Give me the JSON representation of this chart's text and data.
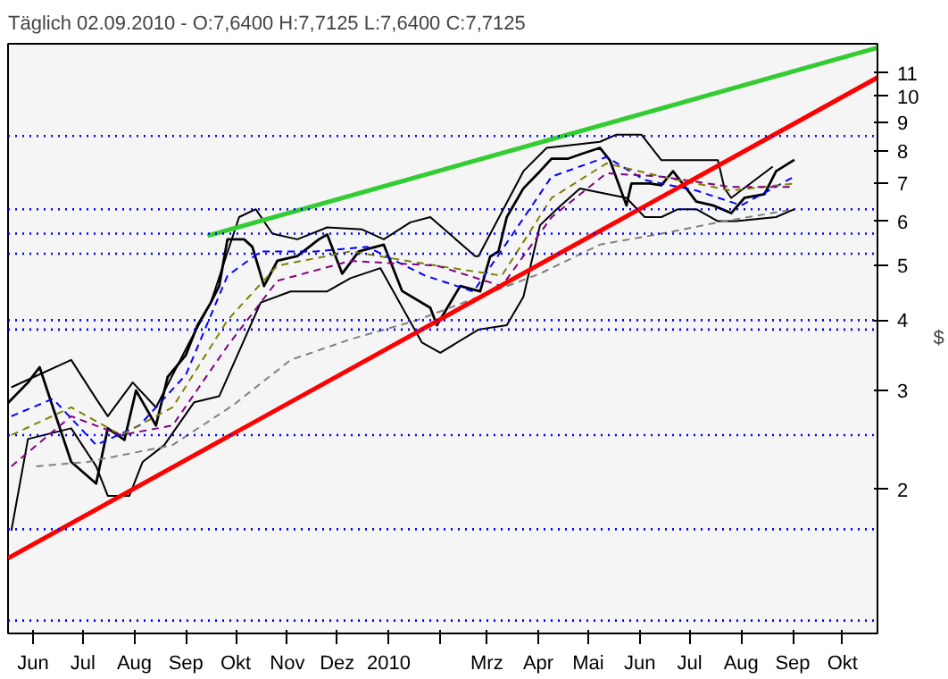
{
  "chart_data": {
    "type": "line",
    "title": "Täglich 02.09.2010 - O:7,6400 H:7,7125 L:7,6400 C:7,7125",
    "ylabel": "$",
    "log": "y",
    "grid": false,
    "xlim": [
      "2009-05-17",
      "2010-10-22"
    ],
    "ylim": [
      1.11,
      12.4
    ],
    "xticks": [
      {
        "value": "2009-06-01",
        "label": "Jun"
      },
      {
        "value": "2009-07-01",
        "label": "Jul"
      },
      {
        "value": "2009-08-01",
        "label": "Aug"
      },
      {
        "value": "2009-09-01",
        "label": "Sep"
      },
      {
        "value": "2009-10-01",
        "label": "Okt"
      },
      {
        "value": "2009-11-01",
        "label": "Nov"
      },
      {
        "value": "2009-12-01",
        "label": "Dez"
      },
      {
        "value": "2010-01-01",
        "label": "2010"
      },
      {
        "value": "2010-02-01",
        "label": null
      },
      {
        "value": "2010-03-01",
        "label": "Mrz"
      },
      {
        "value": "2010-04-01",
        "label": "Apr"
      },
      {
        "value": "2010-05-01",
        "label": "Mai"
      },
      {
        "value": "2010-06-01",
        "label": "Jun"
      },
      {
        "value": "2010-07-01",
        "label": "Jul"
      },
      {
        "value": "2010-08-01",
        "label": "Aug"
      },
      {
        "value": "2010-09-01",
        "label": "Sep"
      },
      {
        "value": "2010-10-01",
        "label": "Okt"
      }
    ],
    "yticks": [
      2,
      3,
      4,
      5,
      6,
      7,
      8,
      9,
      10,
      11
    ],
    "ref_lines": [
      {
        "axis": "y",
        "value": 8.5,
        "color": "#0000ff",
        "line_style": "dotted"
      },
      {
        "axis": "y",
        "value": 6.3,
        "color": "#0000ff",
        "line_style": "dotted"
      },
      {
        "axis": "y",
        "value": 5.7,
        "color": "#0000ff",
        "line_style": "dotted"
      },
      {
        "axis": "y",
        "value": 5.25,
        "color": "#0000ff",
        "line_style": "dotted"
      },
      {
        "axis": "y",
        "value": 4.0,
        "color": "#0000ff",
        "line_style": "dotted"
      },
      {
        "axis": "y",
        "value": 3.85,
        "color": "#0000ff",
        "line_style": "dotted"
      },
      {
        "axis": "y",
        "value": 2.5,
        "color": "#0000ff",
        "line_style": "dotted"
      },
      {
        "axis": "y",
        "value": 1.7,
        "color": "#0000ff",
        "line_style": "dotted"
      },
      {
        "axis": "y",
        "value": 1.17,
        "color": "#0000ff",
        "line_style": "dotted"
      }
    ],
    "series": [
      {
        "color": "#000000",
        "line_style": "solid",
        "x": [
          "2009-05-17",
          "2009-05-29",
          "2009-06-05",
          "2009-06-13",
          "2009-06-24",
          "2009-07-09",
          "2009-07-16",
          "2009-07-26",
          "2009-08-02",
          "2009-08-14",
          "2009-08-21",
          "2009-09-01",
          "2009-09-08",
          "2009-09-16",
          "2009-09-21",
          "2009-09-26",
          "2009-10-06",
          "2009-10-11",
          "2009-10-18",
          "2009-10-26",
          "2009-11-07",
          "2009-11-20",
          "2009-11-25",
          "2009-12-04",
          "2009-12-14",
          "2009-12-29",
          "2010-01-09",
          "2010-01-26",
          "2010-01-30",
          "2010-02-13",
          "2010-02-25",
          "2010-03-03",
          "2010-03-08",
          "2010-03-13",
          "2010-03-23",
          "2010-04-02",
          "2010-04-09",
          "2010-04-19",
          "2010-04-27",
          "2010-05-08",
          "2010-05-14",
          "2010-05-24",
          "2010-05-27",
          "2010-06-07",
          "2010-06-14",
          "2010-06-21",
          "2010-06-29",
          "2010-07-05",
          "2010-07-15",
          "2010-07-26",
          "2010-08-03",
          "2010-08-15",
          "2010-08-22",
          "2010-09-02"
        ],
        "values": [
          2.85,
          3.1,
          3.3,
          2.8,
          2.24,
          2.05,
          2.57,
          2.45,
          3.0,
          2.6,
          3.17,
          3.47,
          3.92,
          4.3,
          4.6,
          5.57,
          5.57,
          5.4,
          4.6,
          5.1,
          5.2,
          5.57,
          5.68,
          4.84,
          5.3,
          5.45,
          4.51,
          4.21,
          3.92,
          4.6,
          4.5,
          5.19,
          5.3,
          6.1,
          6.86,
          7.36,
          7.75,
          7.75,
          7.9,
          8.1,
          7.7,
          6.4,
          7.0,
          7.0,
          6.95,
          7.36,
          6.86,
          6.5,
          6.4,
          6.2,
          6.6,
          6.7,
          7.36,
          7.7125
        ]
      },
      {
        "color": "#000000",
        "line_style": "solid",
        "x": [
          "2009-05-19",
          "2009-06-24",
          "2009-07-09",
          "2009-07-16",
          "2009-07-31",
          "2009-08-14",
          "2009-09-03",
          "2009-09-16",
          "2009-10-03",
          "2009-10-13",
          "2009-10-23",
          "2009-11-07",
          "2009-11-25",
          "2009-12-16",
          "2009-12-29",
          "2010-01-14",
          "2010-01-26",
          "2010-02-22",
          "2010-02-24",
          "2010-03-23",
          "2010-04-06",
          "2010-05-08",
          "2010-05-18",
          "2010-06-02",
          "2010-06-14",
          "2010-06-24",
          "2010-07-18",
          "2010-07-22",
          "2010-07-26",
          "2010-08-20"
        ],
        "values": [
          3.04,
          3.4,
          2.9,
          2.7,
          3.1,
          2.8,
          3.65,
          4.3,
          6.1,
          6.3,
          5.7,
          5.57,
          5.85,
          5.8,
          5.57,
          5.97,
          6.1,
          5.2,
          5.2,
          7.36,
          8.1,
          8.3,
          8.55,
          8.55,
          7.7,
          7.7,
          7.7,
          6.86,
          6.6,
          7.5
        ]
      },
      {
        "color": "#000000",
        "line_style": "solid",
        "x": [
          "2009-05-19",
          "2009-05-29",
          "2009-06-24",
          "2009-07-09",
          "2009-07-16",
          "2009-07-29",
          "2009-08-06",
          "2009-08-19",
          "2009-09-06",
          "2009-09-21",
          "2009-10-16",
          "2009-11-03",
          "2009-11-25",
          "2009-12-09",
          "2009-12-27",
          "2010-01-21",
          "2010-02-01",
          "2010-02-24",
          "2010-03-13",
          "2010-03-23",
          "2010-04-02",
          "2010-04-12",
          "2010-04-26",
          "2010-05-24",
          "2010-06-04",
          "2010-06-14",
          "2010-06-24",
          "2010-07-05",
          "2010-07-18",
          "2010-07-29",
          "2010-08-22",
          "2010-09-02"
        ],
        "values": [
          1.69,
          2.46,
          2.57,
          2.2,
          1.95,
          1.95,
          2.24,
          2.4,
          2.86,
          2.93,
          4.3,
          4.5,
          4.5,
          4.75,
          4.95,
          3.65,
          3.5,
          3.85,
          3.92,
          4.4,
          5.9,
          6.3,
          6.86,
          6.6,
          6.1,
          6.1,
          6.3,
          6.3,
          6.0,
          6.0,
          6.1,
          6.3
        ]
      },
      {
        "color": "#808080",
        "line_style": "dashed",
        "x": [
          "2009-06-03",
          "2009-07-04",
          "2009-08-24",
          "2009-09-29",
          "2009-11-03",
          "2009-12-09",
          "2010-01-18",
          "2010-04-02",
          "2010-05-08",
          "2010-06-14",
          "2010-07-18",
          "2010-09-02"
        ],
        "values": [
          2.2,
          2.24,
          2.4,
          2.82,
          3.4,
          3.7,
          4.0,
          4.84,
          5.45,
          5.7,
          5.97,
          6.3
        ]
      },
      {
        "color": "#0000ff",
        "line_style": "dashed",
        "x": [
          "2009-05-19",
          "2009-06-13",
          "2009-07-09",
          "2009-08-04",
          "2009-09-01",
          "2009-09-26",
          "2009-10-16",
          "2009-11-18",
          "2009-12-19",
          "2010-01-23",
          "2010-02-21",
          "2010-03-15",
          "2010-04-09",
          "2010-05-12",
          "2010-06-04",
          "2010-07-05",
          "2010-08-01",
          "2010-09-02"
        ],
        "values": [
          2.7,
          2.9,
          2.4,
          2.6,
          3.2,
          4.8,
          5.3,
          5.3,
          5.4,
          4.8,
          4.5,
          5.6,
          7.2,
          7.8,
          7.1,
          6.8,
          6.4,
          7.2
        ]
      },
      {
        "color": "#808000",
        "line_style": "dashed",
        "x": [
          "2009-05-19",
          "2009-06-24",
          "2009-07-24",
          "2009-08-24",
          "2009-09-26",
          "2009-10-26",
          "2009-12-09",
          "2010-01-30",
          "2010-03-10",
          "2010-04-09",
          "2010-05-12",
          "2010-06-14",
          "2010-07-26",
          "2010-09-02"
        ],
        "values": [
          2.5,
          2.8,
          2.5,
          2.8,
          4.0,
          5.0,
          5.3,
          5.0,
          4.8,
          6.6,
          7.6,
          7.2,
          6.8,
          7.0
        ]
      },
      {
        "color": "#800080",
        "line_style": "dashed",
        "x": [
          "2009-05-19",
          "2009-06-24",
          "2009-07-24",
          "2009-08-24",
          "2009-09-26",
          "2009-10-26",
          "2009-12-09",
          "2010-01-30",
          "2010-03-10",
          "2010-04-09",
          "2010-05-12",
          "2010-06-14",
          "2010-07-26",
          "2010-09-02"
        ],
        "values": [
          2.2,
          2.7,
          2.5,
          2.6,
          3.6,
          4.7,
          5.1,
          5.0,
          4.6,
          6.1,
          7.3,
          7.2,
          6.9,
          6.9
        ]
      },
      {
        "color": "#33cc33",
        "line_style": "solid",
        "x": [
          "2009-09-14",
          "2010-10-22"
        ],
        "values": [
          5.65,
          12.2
        ]
      },
      {
        "color": "#ff0000",
        "line_style": "solid",
        "x": [
          "2009-05-17",
          "2010-10-22"
        ],
        "values": [
          1.51,
          10.8
        ]
      }
    ]
  }
}
